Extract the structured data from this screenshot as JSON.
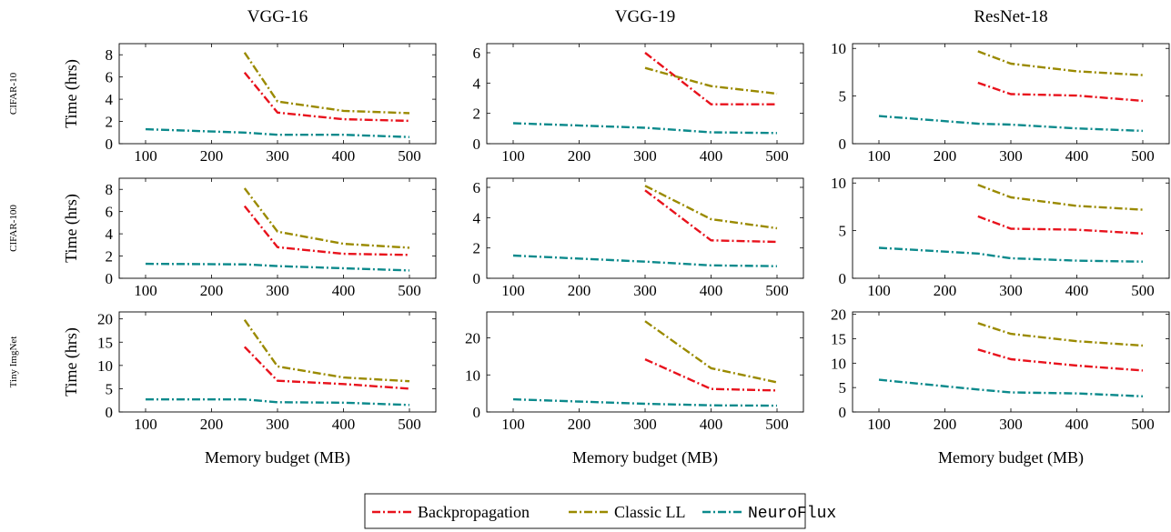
{
  "colors": {
    "Backpropagation": "#e8121c",
    "Classic LL": "#9a8a00",
    "NeuroFlux": "#0c8a8c"
  },
  "legend": [
    {
      "label": "Backpropagation",
      "color": "#e8121c",
      "mono": false
    },
    {
      "label": "Classic LL",
      "color": "#9a8a00",
      "mono": false
    },
    {
      "label": "NeuroFlux",
      "color": "#0c8a8c",
      "mono": true
    }
  ],
  "chart_data": [
    {
      "type": "line",
      "title": "VGG-16",
      "row_label": "CIFAR-10",
      "ylabel": "Time (hrs)",
      "xlabel": "",
      "xlim": [
        60,
        540
      ],
      "xticks": [
        100,
        200,
        300,
        400,
        500
      ],
      "ylim": [
        0,
        9
      ],
      "yticks": [
        0,
        2,
        4,
        6,
        8
      ],
      "series": [
        {
          "name": "Backpropagation",
          "x": [
            250,
            300,
            400,
            500
          ],
          "y": [
            6.4,
            2.8,
            2.2,
            2.05
          ]
        },
        {
          "name": "Classic LL",
          "x": [
            250,
            300,
            400,
            500
          ],
          "y": [
            8.2,
            3.8,
            2.95,
            2.75
          ]
        },
        {
          "name": "NeuroFlux",
          "x": [
            100,
            250,
            300,
            400,
            500
          ],
          "y": [
            1.3,
            1.0,
            0.8,
            0.8,
            0.6
          ]
        }
      ]
    },
    {
      "type": "line",
      "title": "VGG-19",
      "row_label": "",
      "ylabel": "",
      "xlabel": "",
      "xlim": [
        60,
        540
      ],
      "xticks": [
        100,
        200,
        300,
        400,
        500
      ],
      "ylim": [
        0,
        6.6
      ],
      "yticks": [
        0,
        2,
        4,
        6
      ],
      "series": [
        {
          "name": "Backpropagation",
          "x": [
            300,
            400,
            500
          ],
          "y": [
            6.0,
            2.6,
            2.6
          ]
        },
        {
          "name": "Classic LL",
          "x": [
            300,
            400,
            500
          ],
          "y": [
            5.0,
            3.8,
            3.3
          ]
        },
        {
          "name": "NeuroFlux",
          "x": [
            100,
            300,
            400,
            500
          ],
          "y": [
            1.35,
            1.05,
            0.75,
            0.7
          ]
        }
      ]
    },
    {
      "type": "line",
      "title": "ResNet-18",
      "row_label": "",
      "ylabel": "",
      "xlabel": "",
      "xlim": [
        60,
        540
      ],
      "xticks": [
        100,
        200,
        300,
        400,
        500
      ],
      "ylim": [
        0,
        10.5
      ],
      "yticks": [
        0,
        5,
        10
      ],
      "series": [
        {
          "name": "Backpropagation",
          "x": [
            250,
            300,
            400,
            500
          ],
          "y": [
            6.4,
            5.2,
            5.05,
            4.5
          ]
        },
        {
          "name": "Classic LL",
          "x": [
            250,
            300,
            400,
            500
          ],
          "y": [
            9.7,
            8.4,
            7.6,
            7.2
          ]
        },
        {
          "name": "NeuroFlux",
          "x": [
            100,
            250,
            300,
            400,
            500
          ],
          "y": [
            2.9,
            2.1,
            2.0,
            1.6,
            1.35
          ]
        }
      ]
    },
    {
      "type": "line",
      "title": "",
      "row_label": "CIFAR-100",
      "ylabel": "Time (hrs)",
      "xlabel": "",
      "xlim": [
        60,
        540
      ],
      "xticks": [
        100,
        200,
        300,
        400,
        500
      ],
      "ylim": [
        0,
        9
      ],
      "yticks": [
        0,
        2,
        4,
        6,
        8
      ],
      "series": [
        {
          "name": "Backpropagation",
          "x": [
            250,
            300,
            400,
            500
          ],
          "y": [
            6.5,
            2.8,
            2.2,
            2.1
          ]
        },
        {
          "name": "Classic LL",
          "x": [
            250,
            300,
            400,
            500
          ],
          "y": [
            8.1,
            4.2,
            3.1,
            2.75
          ]
        },
        {
          "name": "NeuroFlux",
          "x": [
            100,
            250,
            300,
            400,
            500
          ],
          "y": [
            1.3,
            1.25,
            1.1,
            0.9,
            0.7
          ]
        }
      ]
    },
    {
      "type": "line",
      "title": "",
      "row_label": "",
      "ylabel": "",
      "xlabel": "",
      "xlim": [
        60,
        540
      ],
      "xticks": [
        100,
        200,
        300,
        400,
        500
      ],
      "ylim": [
        0,
        6.6
      ],
      "yticks": [
        0,
        2,
        4,
        6
      ],
      "series": [
        {
          "name": "Backpropagation",
          "x": [
            300,
            400,
            500
          ],
          "y": [
            5.8,
            2.5,
            2.4
          ]
        },
        {
          "name": "Classic LL",
          "x": [
            300,
            400,
            500
          ],
          "y": [
            6.1,
            3.9,
            3.3
          ]
        },
        {
          "name": "NeuroFlux",
          "x": [
            100,
            300,
            400,
            500
          ],
          "y": [
            1.5,
            1.1,
            0.85,
            0.8
          ]
        }
      ]
    },
    {
      "type": "line",
      "title": "",
      "row_label": "",
      "ylabel": "",
      "xlabel": "",
      "xlim": [
        60,
        540
      ],
      "xticks": [
        100,
        200,
        300,
        400,
        500
      ],
      "ylim": [
        0,
        10.5
      ],
      "yticks": [
        0,
        5,
        10
      ],
      "series": [
        {
          "name": "Backpropagation",
          "x": [
            250,
            300,
            400,
            500
          ],
          "y": [
            6.5,
            5.2,
            5.1,
            4.7
          ]
        },
        {
          "name": "Classic LL",
          "x": [
            250,
            300,
            400,
            500
          ],
          "y": [
            9.8,
            8.5,
            7.6,
            7.2
          ]
        },
        {
          "name": "NeuroFlux",
          "x": [
            100,
            250,
            300,
            400,
            500
          ],
          "y": [
            3.2,
            2.6,
            2.1,
            1.85,
            1.75
          ]
        }
      ]
    },
    {
      "type": "line",
      "title": "",
      "row_label": "Tiny ImgNet",
      "ylabel": "Time (hrs)",
      "xlabel": "Memory budget (MB)",
      "xlim": [
        60,
        540
      ],
      "xticks": [
        100,
        200,
        300,
        400,
        500
      ],
      "ylim": [
        0,
        21.5
      ],
      "yticks": [
        0,
        5,
        10,
        15,
        20
      ],
      "series": [
        {
          "name": "Backpropagation",
          "x": [
            250,
            300,
            400,
            500
          ],
          "y": [
            14.0,
            6.7,
            6.0,
            5.0
          ]
        },
        {
          "name": "Classic LL",
          "x": [
            250,
            300,
            400,
            500
          ],
          "y": [
            19.8,
            9.8,
            7.4,
            6.6
          ]
        },
        {
          "name": "NeuroFlux",
          "x": [
            100,
            250,
            300,
            400,
            500
          ],
          "y": [
            2.7,
            2.7,
            2.1,
            2.0,
            1.5
          ]
        }
      ]
    },
    {
      "type": "line",
      "title": "",
      "row_label": "",
      "ylabel": "",
      "xlabel": "Memory budget (MB)",
      "xlim": [
        60,
        540
      ],
      "xticks": [
        100,
        200,
        300,
        400,
        500
      ],
      "ylim": [
        0,
        27
      ],
      "yticks": [
        0,
        10,
        20
      ],
      "series": [
        {
          "name": "Backpropagation",
          "x": [
            300,
            400,
            500
          ],
          "y": [
            14.2,
            6.2,
            5.8
          ]
        },
        {
          "name": "Classic LL",
          "x": [
            300,
            400,
            500
          ],
          "y": [
            24.5,
            11.8,
            8.0
          ]
        },
        {
          "name": "NeuroFlux",
          "x": [
            100,
            300,
            400,
            500
          ],
          "y": [
            3.4,
            2.2,
            1.8,
            1.7
          ]
        }
      ]
    },
    {
      "type": "line",
      "title": "",
      "row_label": "",
      "ylabel": "",
      "xlabel": "Memory budget (MB)",
      "xlim": [
        60,
        540
      ],
      "xticks": [
        100,
        200,
        300,
        400,
        500
      ],
      "ylim": [
        0,
        20.5
      ],
      "yticks": [
        0,
        5,
        10,
        15,
        20
      ],
      "series": [
        {
          "name": "Backpropagation",
          "x": [
            250,
            300,
            400,
            500
          ],
          "y": [
            12.8,
            10.8,
            9.5,
            8.5
          ]
        },
        {
          "name": "Classic LL",
          "x": [
            250,
            300,
            400,
            500
          ],
          "y": [
            18.2,
            16.0,
            14.5,
            13.6
          ]
        },
        {
          "name": "NeuroFlux",
          "x": [
            100,
            250,
            300,
            400,
            500
          ],
          "y": [
            6.6,
            4.6,
            4.0,
            3.8,
            3.2
          ]
        }
      ]
    }
  ]
}
